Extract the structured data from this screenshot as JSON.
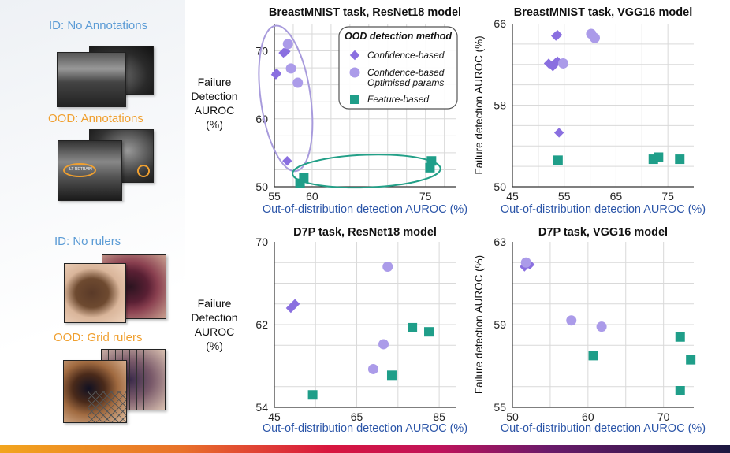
{
  "left_labels": {
    "id_annotations": "ID: No Annotations",
    "ood_annotations": "OOD: Annotations",
    "id_rulers": "ID: No rulers",
    "ood_rulers": "OOD: Grid rulers",
    "ring_text": "LT RETRAIN"
  },
  "side_title_top": {
    "line1": "Failure",
    "line2": "Detection",
    "line3": "AUROC",
    "line4": "(%)"
  },
  "side_title_bottom": {
    "line1": "Failure",
    "line2": "Detection",
    "line3": "AUROC",
    "line4": "(%)"
  },
  "colors": {
    "confidence": "#8a6fe0",
    "optimised": "#ab9be9",
    "feature": "#1f9e89",
    "ellipse_purple": "#a89bdc",
    "ellipse_green": "#23a088"
  },
  "chart_data": [
    {
      "type": "scatter",
      "title": "BreastMNIST task, ResNet18 model",
      "xlabel": "Out-of-distribution detection AUROC (%)",
      "ylabel": "",
      "xlim": [
        55,
        79
      ],
      "ylim": [
        50,
        74
      ],
      "xticks": [
        55,
        60,
        65,
        70,
        75
      ],
      "yticks": [
        50,
        60,
        70
      ],
      "xtick_labels": [
        "55",
        "60",
        "",
        "",
        "75"
      ],
      "ytick_labels": [
        "50",
        "60",
        "70"
      ],
      "grid": true,
      "legend": {
        "title": "OOD detection method",
        "entries": [
          "Confidence-based",
          "Confidence-based Optimised params",
          "Feature-based"
        ],
        "entry_lines": [
          [
            "Confidence-based"
          ],
          [
            "Confidence-based",
            "Optimised params"
          ],
          [
            "Feature-based"
          ]
        ],
        "position": "top-right"
      },
      "series": [
        {
          "name": "Confidence-based",
          "marker": "diamond",
          "points": [
            [
              55.2,
              66.5
            ],
            [
              55.3,
              66.7
            ],
            [
              56.2,
              69.7
            ],
            [
              56.5,
              69.9
            ],
            [
              56.7,
              53.8
            ]
          ]
        },
        {
          "name": "Confidence-based Optimised params",
          "marker": "circle",
          "points": [
            [
              56.8,
              71.0
            ],
            [
              57.2,
              67.4
            ],
            [
              58.1,
              65.3
            ]
          ]
        },
        {
          "name": "Feature-based",
          "marker": "square",
          "points": [
            [
              58.4,
              50.5
            ],
            [
              58.9,
              51.3
            ],
            [
              75.6,
              52.8
            ],
            [
              75.8,
              53.8
            ]
          ]
        }
      ],
      "ellipses": [
        {
          "color": "purple",
          "cx": 56.5,
          "cy": 63.0,
          "rx": 3.3,
          "ry": 10.8,
          "angle": -8
        },
        {
          "color": "green",
          "cx": 67.2,
          "cy": 52.3,
          "rx": 9.8,
          "ry": 2.4,
          "angle": -2
        }
      ]
    },
    {
      "type": "scatter",
      "title": "BreastMNIST task, VGG16 model",
      "xlabel": "Out-of-distribution detection AUROC (%)",
      "ylabel": "Failure detection AUROC (%)",
      "xlim": [
        45,
        80
      ],
      "ylim": [
        50,
        66
      ],
      "xticks": [
        45,
        55,
        65,
        75
      ],
      "yticks": [
        50,
        58,
        66
      ],
      "grid": true,
      "series": [
        {
          "name": "Confidence-based",
          "marker": "diamond",
          "points": [
            [
              52.0,
              62.1
            ],
            [
              52.8,
              61.8
            ],
            [
              53.4,
              62.2
            ],
            [
              53.7,
              62.3
            ],
            [
              53.4,
              64.8
            ],
            [
              53.7,
              64.9
            ],
            [
              54.0,
              55.3
            ]
          ]
        },
        {
          "name": "Confidence-based Optimised params",
          "marker": "circle",
          "points": [
            [
              54.8,
              62.1
            ],
            [
              60.2,
              65.0
            ],
            [
              60.9,
              64.6
            ]
          ]
        },
        {
          "name": "Feature-based",
          "marker": "square",
          "points": [
            [
              53.8,
              52.6
            ],
            [
              72.2,
              52.7
            ],
            [
              73.2,
              52.9
            ],
            [
              77.3,
              52.7
            ]
          ]
        }
      ]
    },
    {
      "type": "scatter",
      "title": "D7P task, ResNet18 model",
      "xlabel": "Out-of-distribution detection AUROC (%)",
      "ylabel": "",
      "xlim": [
        45,
        89
      ],
      "ylim": [
        54,
        70
      ],
      "xticks": [
        45,
        65,
        85
      ],
      "yticks": [
        54,
        62,
        70
      ],
      "grid": true,
      "series": [
        {
          "name": "Confidence-based",
          "marker": "diamond",
          "points": [
            [
              49.0,
              63.6
            ],
            [
              50.0,
              64.0
            ]
          ]
        },
        {
          "name": "Confidence-based Optimised params",
          "marker": "circle",
          "points": [
            [
              69.0,
              57.7
            ],
            [
              71.5,
              60.1
            ],
            [
              72.5,
              67.6
            ]
          ]
        },
        {
          "name": "Feature-based",
          "marker": "square",
          "points": [
            [
              54.3,
              55.2
            ],
            [
              73.5,
              57.1
            ],
            [
              78.5,
              61.7
            ],
            [
              82.5,
              61.3
            ]
          ]
        }
      ]
    },
    {
      "type": "scatter",
      "title": "D7P task, VGG16 model",
      "xlabel": "Out-of-distribution detection AUROC (%)",
      "ylabel": "Failure detection AUROC (%)",
      "xlim": [
        50,
        74
      ],
      "ylim": [
        55,
        63
      ],
      "xticks": [
        50,
        60,
        70
      ],
      "yticks": [
        55,
        59,
        63
      ],
      "grid": true,
      "series": [
        {
          "name": "Confidence-based",
          "marker": "diamond",
          "points": [
            [
              51.6,
              61.8
            ],
            [
              52.3,
              61.9
            ]
          ]
        },
        {
          "name": "Confidence-based Optimised params",
          "marker": "circle",
          "points": [
            [
              51.8,
              62.0
            ],
            [
              57.8,
              59.2
            ],
            [
              61.8,
              58.9
            ]
          ]
        },
        {
          "name": "Feature-based",
          "marker": "square",
          "points": [
            [
              60.7,
              57.5
            ],
            [
              72.2,
              58.4
            ],
            [
              72.2,
              55.8
            ],
            [
              73.6,
              57.3
            ]
          ]
        }
      ]
    }
  ]
}
